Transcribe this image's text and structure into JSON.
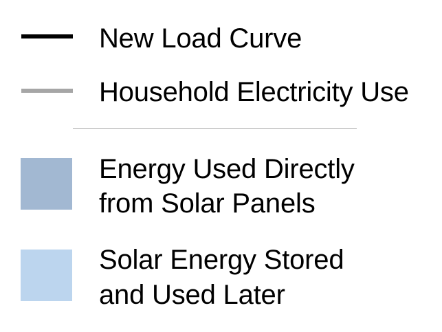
{
  "chart_data": {
    "type": "legend",
    "title": "",
    "legend": {
      "lines": [
        {
          "label": "New Load Curve",
          "color": "#000000"
        },
        {
          "label": "Household Electricity Use",
          "color": "#a6a6a6"
        }
      ],
      "areas": [
        {
          "label_lines": [
            "Energy Used Directly",
            "from Solar Panels"
          ],
          "color": "#a2b8d2"
        },
        {
          "label_lines": [
            "Solar Energy Stored",
            "and Used Later"
          ],
          "color": "#bcd5ee"
        }
      ],
      "divider_color": "#a6a6a6"
    }
  }
}
